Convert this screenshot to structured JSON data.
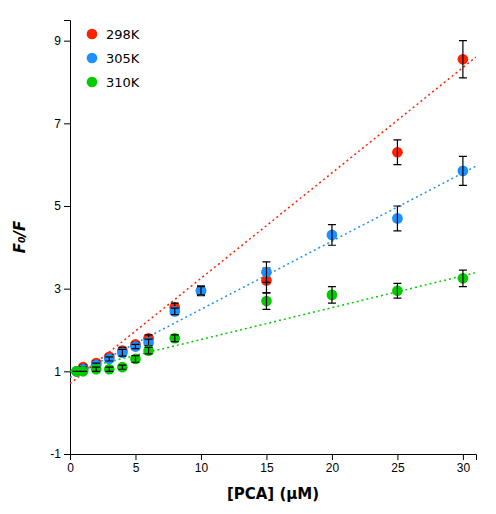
{
  "chart_data": {
    "type": "scatter",
    "xlabel": "[PCA] (μM)",
    "ylabel": "F₀/F",
    "xlim": [
      0,
      31
    ],
    "ylim": [
      -1,
      9.5
    ],
    "xticks": [
      0,
      5,
      10,
      15,
      20,
      25,
      30
    ],
    "yticks": [
      -1,
      1,
      3,
      5,
      7,
      9
    ],
    "legend": "upper left",
    "series": [
      {
        "name": "298K",
        "color": "#ff2200",
        "marker": "circle",
        "x": [
          0.5,
          1,
          2,
          3,
          4,
          5,
          6,
          8,
          10,
          15,
          25,
          30
        ],
        "values": [
          1.0,
          1.1,
          1.2,
          1.35,
          1.5,
          1.65,
          1.8,
          2.55,
          2.95,
          3.2,
          6.3,
          8.55
        ],
        "yerr": [
          0.0,
          0.05,
          0.05,
          0.05,
          0.08,
          0.05,
          0.08,
          0.1,
          0.12,
          0.3,
          0.3,
          0.45
        ],
        "fit": {
          "x": [
            0,
            31
          ],
          "values": [
            0.7,
            8.605
          ]
        }
      },
      {
        "name": "305K",
        "color": "#1e90ff",
        "marker": "circle",
        "x": [
          0.5,
          1,
          2,
          3,
          4,
          5,
          6,
          8,
          10,
          15,
          20,
          25,
          30
        ],
        "values": [
          1.0,
          1.05,
          1.15,
          1.3,
          1.45,
          1.6,
          1.7,
          2.45,
          2.95,
          3.4,
          4.3,
          4.7,
          5.85
        ],
        "yerr": [
          0.0,
          0.05,
          0.05,
          0.05,
          0.08,
          0.05,
          0.08,
          0.08,
          0.1,
          0.25,
          0.25,
          0.3,
          0.35
        ],
        "fit": {
          "x": [
            0,
            31
          ],
          "values": [
            0.85,
            5.965
          ]
        }
      },
      {
        "name": "310K",
        "color": "#00cc00",
        "marker": "circle",
        "x": [
          0.5,
          1,
          2,
          3,
          4,
          5,
          6,
          8,
          15,
          20,
          25,
          30
        ],
        "values": [
          1.0,
          1.0,
          1.05,
          1.05,
          1.1,
          1.3,
          1.5,
          1.8,
          2.7,
          2.85,
          2.95,
          3.25
        ],
        "yerr": [
          0.0,
          0.0,
          0.05,
          0.05,
          0.05,
          0.08,
          0.08,
          0.08,
          0.2,
          0.2,
          0.18,
          0.2
        ],
        "fit": {
          "x": [
            0,
            31
          ],
          "values": [
            1.0,
            3.387
          ]
        }
      }
    ]
  }
}
